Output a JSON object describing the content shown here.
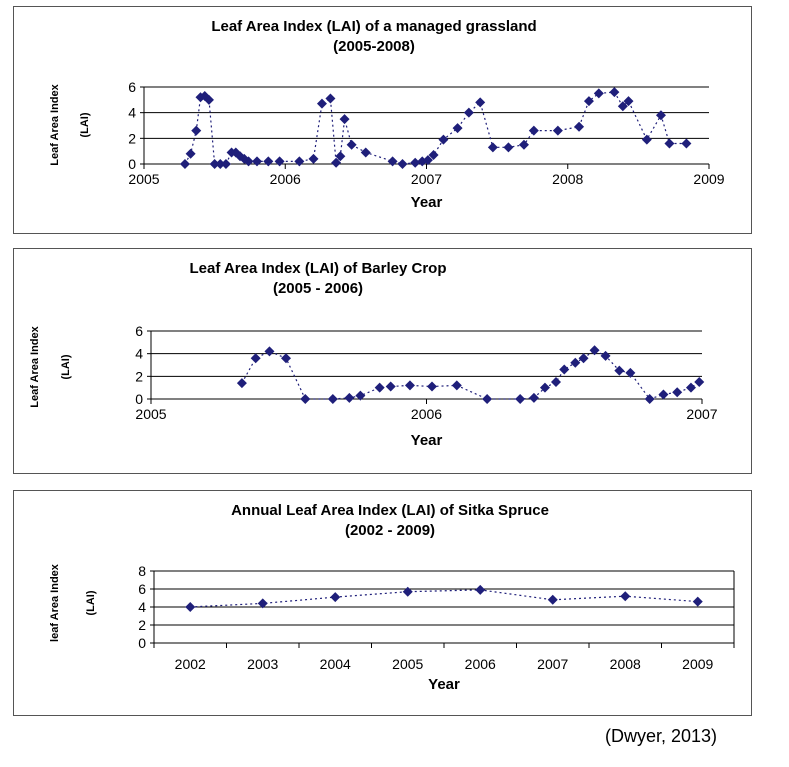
{
  "source_note": "(Dwyer, 2013)",
  "colors": {
    "marker": "#1f1f7a",
    "line": "#1f1f7a",
    "grid": "#000000"
  },
  "chart_data": [
    {
      "type": "scatter",
      "title": "Leaf Area Index (LAI) of a managed grassland",
      "subtitle": "(2005-2008)",
      "xlabel": "Year",
      "ylabel": "Leaf Area Index",
      "ylabel2": "(LAI)",
      "xlim": [
        2005,
        2009
      ],
      "ylim": [
        0,
        6
      ],
      "xticks": [
        2005,
        2006,
        2007,
        2008,
        2009
      ],
      "yticks": [
        0,
        2,
        4,
        6
      ],
      "grid": true,
      "legend": "none",
      "series": [
        {
          "x": [
            2005.29,
            2005.33,
            2005.37,
            2005.4,
            2005.43,
            2005.46,
            2005.5,
            2005.54,
            2005.58,
            2005.62,
            2005.65,
            2005.68,
            2005.71,
            2005.74,
            2005.8,
            2005.88,
            2005.96,
            2006.1,
            2006.2,
            2006.26,
            2006.32,
            2006.36,
            2006.39,
            2006.42,
            2006.47,
            2006.57,
            2006.76,
            2006.83,
            2006.92,
            2006.97,
            2007.01,
            2007.05,
            2007.12,
            2007.22,
            2007.3,
            2007.38,
            2007.47,
            2007.58,
            2007.69,
            2007.76,
            2007.93,
            2008.08,
            2008.15,
            2008.22,
            2008.33,
            2008.39,
            2008.43,
            2008.56,
            2008.66,
            2008.72,
            2008.84
          ],
          "y": [
            0.0,
            0.8,
            2.6,
            5.2,
            5.3,
            5.0,
            0.0,
            0.0,
            0.0,
            0.9,
            0.9,
            0.6,
            0.4,
            0.2,
            0.2,
            0.2,
            0.2,
            0.2,
            0.4,
            4.7,
            5.1,
            0.1,
            0.6,
            3.5,
            1.5,
            0.9,
            0.2,
            0.0,
            0.1,
            0.2,
            0.3,
            0.7,
            1.9,
            2.8,
            4.0,
            4.8,
            1.3,
            1.3,
            1.5,
            2.6,
            2.6,
            2.9,
            4.9,
            5.5,
            5.6,
            4.5,
            4.9,
            1.9,
            3.8,
            1.6,
            1.6
          ]
        }
      ]
    },
    {
      "type": "scatter",
      "title": "Leaf Area Index (LAI) of Barley Crop",
      "subtitle": "(2005 - 2006)",
      "xlabel": "Year",
      "ylabel": "Leaf Area Index",
      "ylabel2": "(LAI)",
      "xlim": [
        2005,
        2007
      ],
      "ylim": [
        0,
        6
      ],
      "xticks": [
        2005,
        2006,
        2007
      ],
      "yticks": [
        0,
        2,
        4,
        6
      ],
      "grid": true,
      "legend": "none",
      "series": [
        {
          "x": [
            2005.33,
            2005.38,
            2005.43,
            2005.49,
            2005.56,
            2005.66,
            2005.72,
            2005.76,
            2005.83,
            2005.87,
            2005.94,
            2006.02,
            2006.11,
            2006.22,
            2006.34,
            2006.39,
            2006.43,
            2006.47,
            2006.5,
            2006.54,
            2006.57,
            2006.61,
            2006.65,
            2006.7,
            2006.74,
            2006.81,
            2006.86,
            2006.91,
            2006.96,
            2006.99
          ],
          "y": [
            1.4,
            3.6,
            4.2,
            3.6,
            0.0,
            0.0,
            0.1,
            0.3,
            1.0,
            1.1,
            1.2,
            1.1,
            1.2,
            0.0,
            0.0,
            0.1,
            1.0,
            1.5,
            2.6,
            3.2,
            3.6,
            4.3,
            3.8,
            2.5,
            2.3,
            0.0,
            0.4,
            0.6,
            1.0,
            1.5
          ]
        }
      ]
    },
    {
      "type": "line",
      "title": "Annual Leaf Area Index (LAI) of Sitka Spruce",
      "subtitle": "(2002 - 2009)",
      "xlabel": "Year",
      "ylabel": "leaf Area Index",
      "ylabel2": "(LAI)",
      "categories": [
        "2002",
        "2003",
        "2004",
        "2005",
        "2006",
        "2007",
        "2008",
        "2009"
      ],
      "ylim": [
        0,
        8
      ],
      "yticks": [
        0,
        2,
        4,
        6,
        8
      ],
      "grid": true,
      "legend": "none",
      "series": [
        {
          "values": [
            4.0,
            4.4,
            5.1,
            5.7,
            5.9,
            4.8,
            5.2,
            4.6
          ]
        }
      ]
    }
  ]
}
